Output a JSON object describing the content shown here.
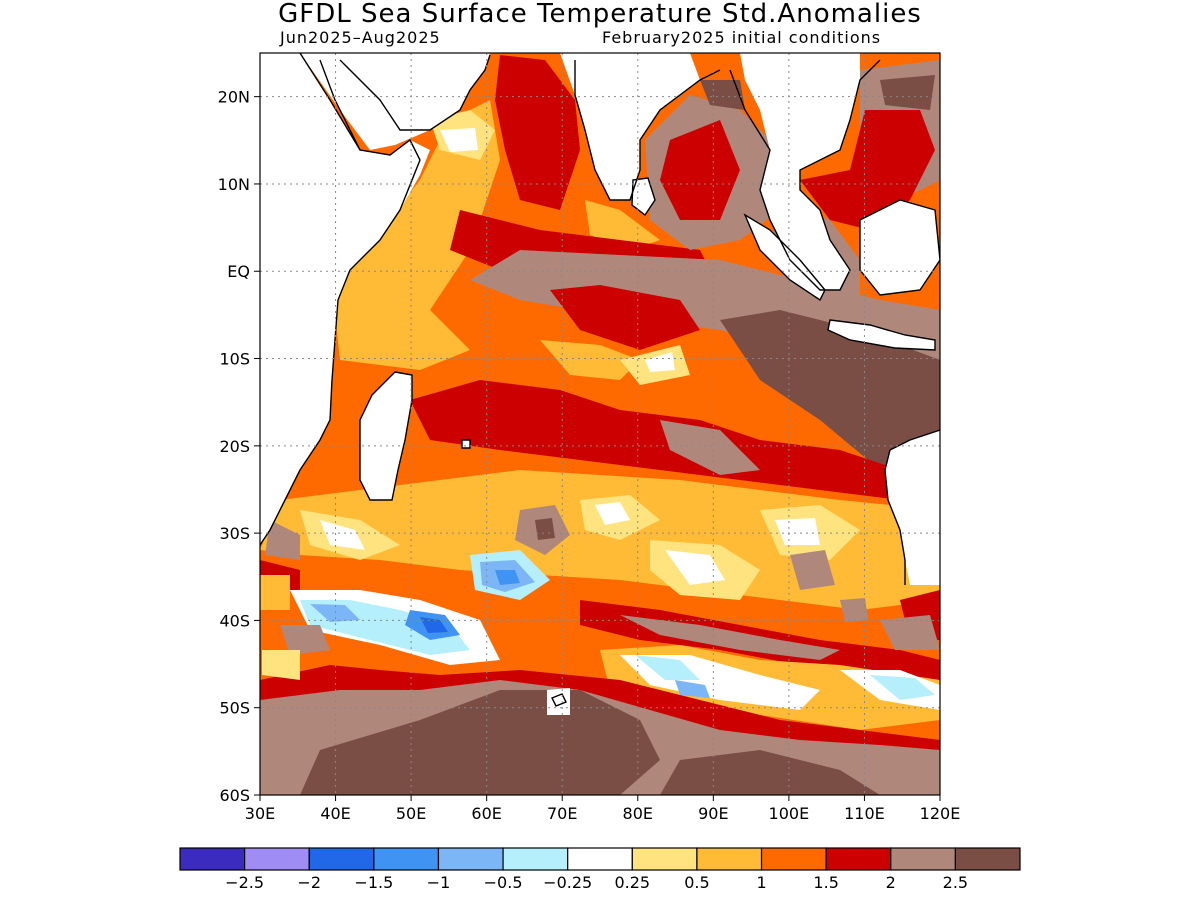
{
  "header": {
    "title": "GFDL Sea Surface Temperature Std.Anomalies",
    "period": "Jun2025–Aug2025",
    "init": "February2025 initial conditions"
  },
  "chart_data": {
    "type": "heatmap",
    "xlim": [
      30,
      120
    ],
    "ylim": [
      -60,
      25
    ],
    "xticks": [
      {
        "v": 30,
        "label": "30E"
      },
      {
        "v": 40,
        "label": "40E"
      },
      {
        "v": 50,
        "label": "50E"
      },
      {
        "v": 60,
        "label": "60E"
      },
      {
        "v": 70,
        "label": "70E"
      },
      {
        "v": 80,
        "label": "80E"
      },
      {
        "v": 90,
        "label": "90E"
      },
      {
        "v": 100,
        "label": "100E"
      },
      {
        "v": 110,
        "label": "110E"
      },
      {
        "v": 120,
        "label": "120E"
      }
    ],
    "yticks": [
      {
        "v": 20,
        "label": "20N"
      },
      {
        "v": 10,
        "label": "10N"
      },
      {
        "v": 0,
        "label": "EQ"
      },
      {
        "v": -10,
        "label": "10S"
      },
      {
        "v": -20,
        "label": "20S"
      },
      {
        "v": -30,
        "label": "30S"
      },
      {
        "v": -40,
        "label": "40S"
      },
      {
        "v": -50,
        "label": "50S"
      },
      {
        "v": -60,
        "label": "60S"
      }
    ],
    "grid": true,
    "legend_position": "bottom",
    "colorbar": {
      "colors": [
        "#3b2bbf",
        "#9f8cf5",
        "#2068e8",
        "#3f93f2",
        "#7cb6f6",
        "#b4effb",
        "#ffffff",
        "#ffe37f",
        "#ffbb35",
        "#ff6a00",
        "#cc0000",
        "#b0877b",
        "#7a4e45"
      ],
      "labels": [
        "−2.5",
        "−2",
        "−1.5",
        "−1",
        "−0.5",
        "−0.25",
        "0.25",
        "0.5",
        "1",
        "1.5",
        "2",
        "2.5"
      ]
    },
    "land_color": "#ffffff",
    "coast_color": "#000000"
  }
}
